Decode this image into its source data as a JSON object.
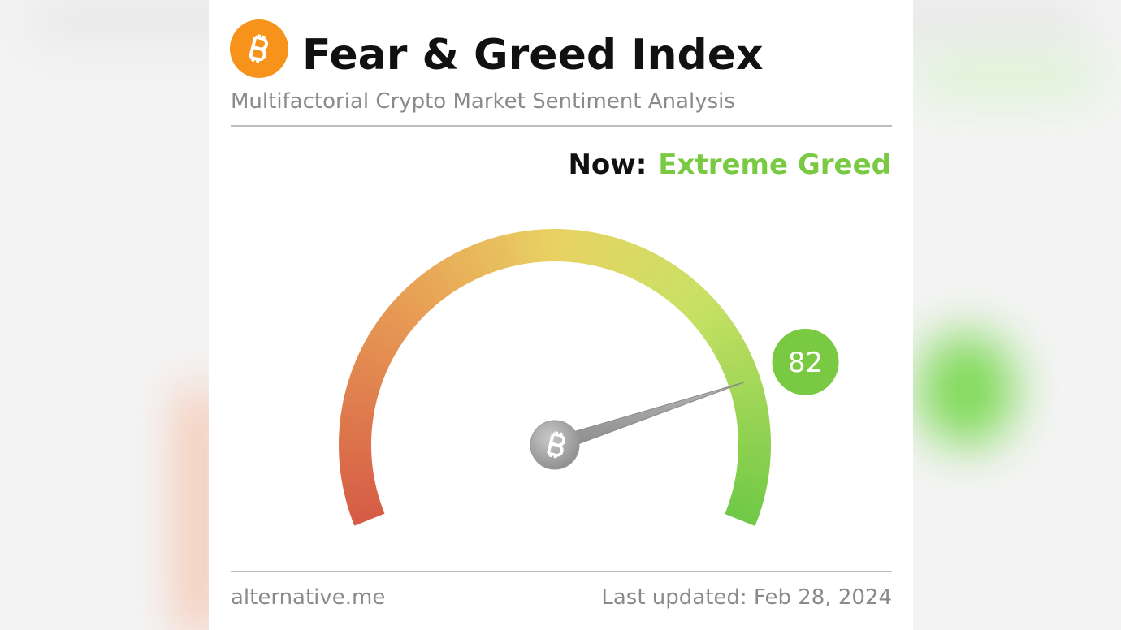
{
  "chart_data": {
    "type": "gauge",
    "title": "Fear & Greed Index",
    "subtitle": "Multifactorial Crypto Market Sentiment Analysis",
    "now_label": "Now:",
    "classification": "Extreme Greed",
    "value": 82,
    "ylim": [
      0,
      100
    ],
    "color": "#7ac943",
    "source": "alternative.me",
    "last_updated": "Last updated: Feb 28, 2024"
  }
}
